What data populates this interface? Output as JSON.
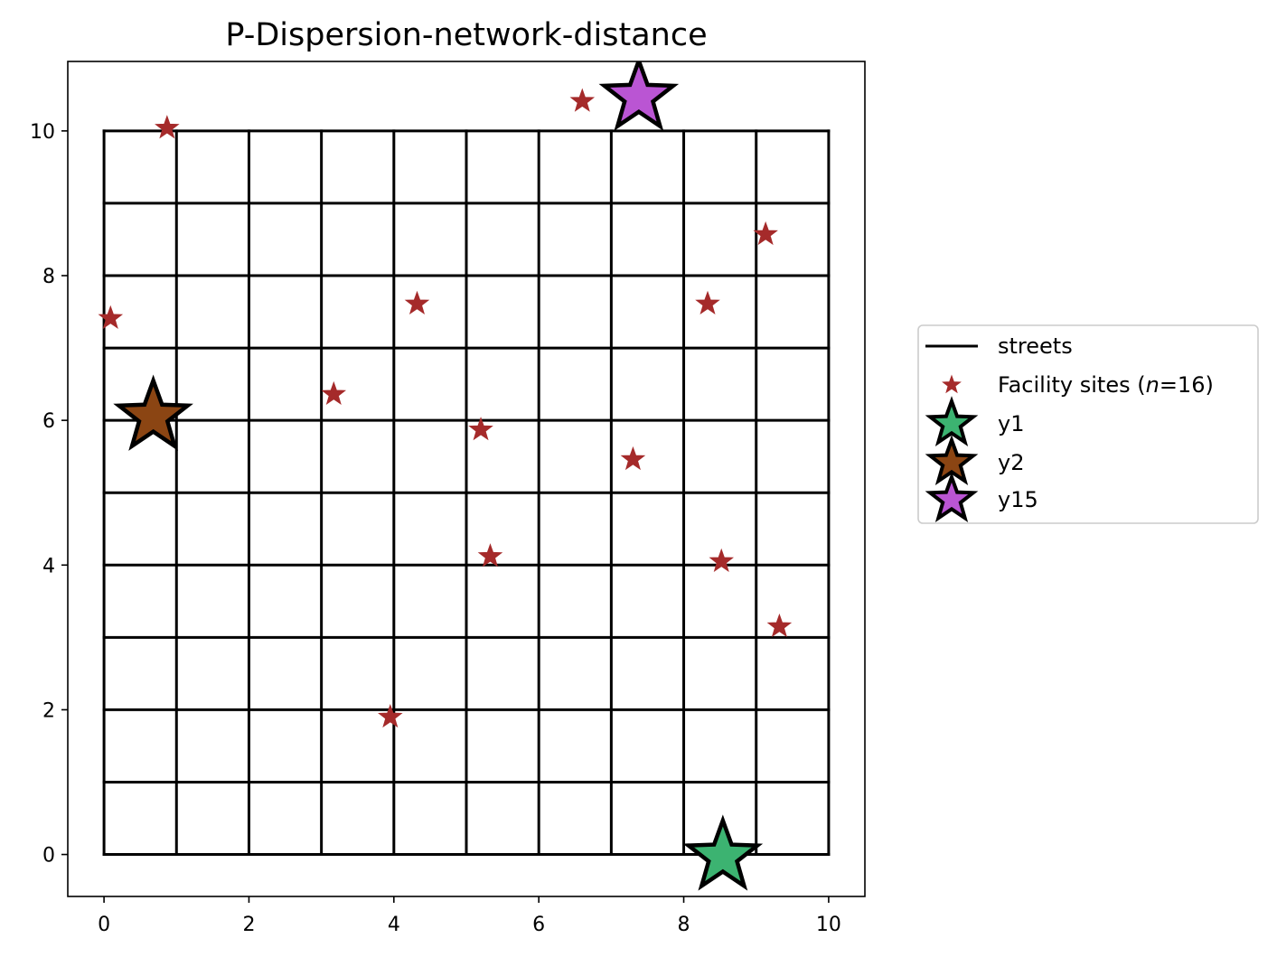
{
  "chart_data": {
    "type": "scatter",
    "title": "P-Dispersion-network-distance",
    "xlabel": "",
    "ylabel": "",
    "xlim": [
      -0.5,
      10.5
    ],
    "ylim": [
      -0.58,
      10.96
    ],
    "xticks": [
      0,
      2,
      4,
      6,
      8,
      10
    ],
    "yticks": [
      0,
      2,
      4,
      6,
      8,
      10
    ],
    "xtick_labels": [
      "0",
      "2",
      "4",
      "6",
      "8",
      "10"
    ],
    "ytick_labels": [
      "0",
      "2",
      "4",
      "6",
      "8",
      "10"
    ],
    "grid": false,
    "legend_position": "outside-right",
    "streets": {
      "name": "streets",
      "color": "#000000",
      "vertical_x": [
        0,
        1,
        2,
        3,
        4,
        5,
        6,
        7,
        8,
        9,
        10
      ],
      "horizontal_y": [
        0,
        1,
        2,
        3,
        4,
        5,
        6,
        7,
        8,
        9,
        10
      ],
      "extent": [
        0,
        10
      ]
    },
    "facility_sites": {
      "name_prefix": "Facility sites (",
      "name_var": "n",
      "name_suffix": "=16)",
      "color": "#a52a2a",
      "points": [
        {
          "x": 0.87,
          "y": 10.04
        },
        {
          "x": 6.6,
          "y": 10.41
        },
        {
          "x": 9.13,
          "y": 8.57
        },
        {
          "x": 0.09,
          "y": 7.41
        },
        {
          "x": 4.32,
          "y": 7.61
        },
        {
          "x": 8.33,
          "y": 7.61
        },
        {
          "x": 3.17,
          "y": 6.36
        },
        {
          "x": 5.2,
          "y": 5.87
        },
        {
          "x": 7.3,
          "y": 5.46
        },
        {
          "x": 5.33,
          "y": 4.12
        },
        {
          "x": 8.52,
          "y": 4.05
        },
        {
          "x": 9.32,
          "y": 3.15
        },
        {
          "x": 3.95,
          "y": 1.9
        }
      ]
    },
    "selected": [
      {
        "name": "y1",
        "x": 8.54,
        "y": -0.03,
        "color": "#3cb371"
      },
      {
        "name": "y2",
        "x": 0.68,
        "y": 6.05,
        "color": "#8b4513"
      },
      {
        "name": "y15",
        "x": 7.38,
        "y": 10.47,
        "color": "#ba55d3"
      }
    ]
  }
}
